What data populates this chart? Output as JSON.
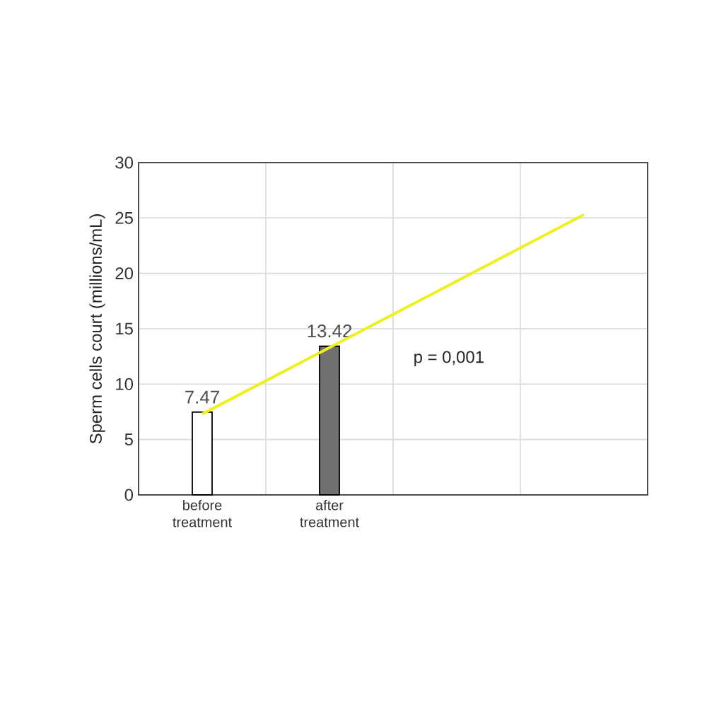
{
  "chart_data": {
    "type": "bar",
    "ylabel": "Sperm cells court (millions/mL)",
    "categories": [
      "before treatment",
      "after treatment",
      null,
      null
    ],
    "series": [
      {
        "colors": [
          "#ffffff",
          "#707070",
          null,
          null
        ],
        "values": [
          7.47,
          13.42,
          null,
          null
        ],
        "value_labels": [
          "7.47",
          "13.42",
          null,
          null
        ]
      },
      {
        "type": "line",
        "color": "#eef020",
        "values": [
          7.3,
          null,
          null,
          25.3
        ]
      }
    ],
    "ylim": [
      0,
      30
    ],
    "yticks": [
      0,
      5,
      10,
      15,
      20,
      25,
      30
    ],
    "grid": true,
    "annotations": [
      "p = 0,001"
    ]
  }
}
